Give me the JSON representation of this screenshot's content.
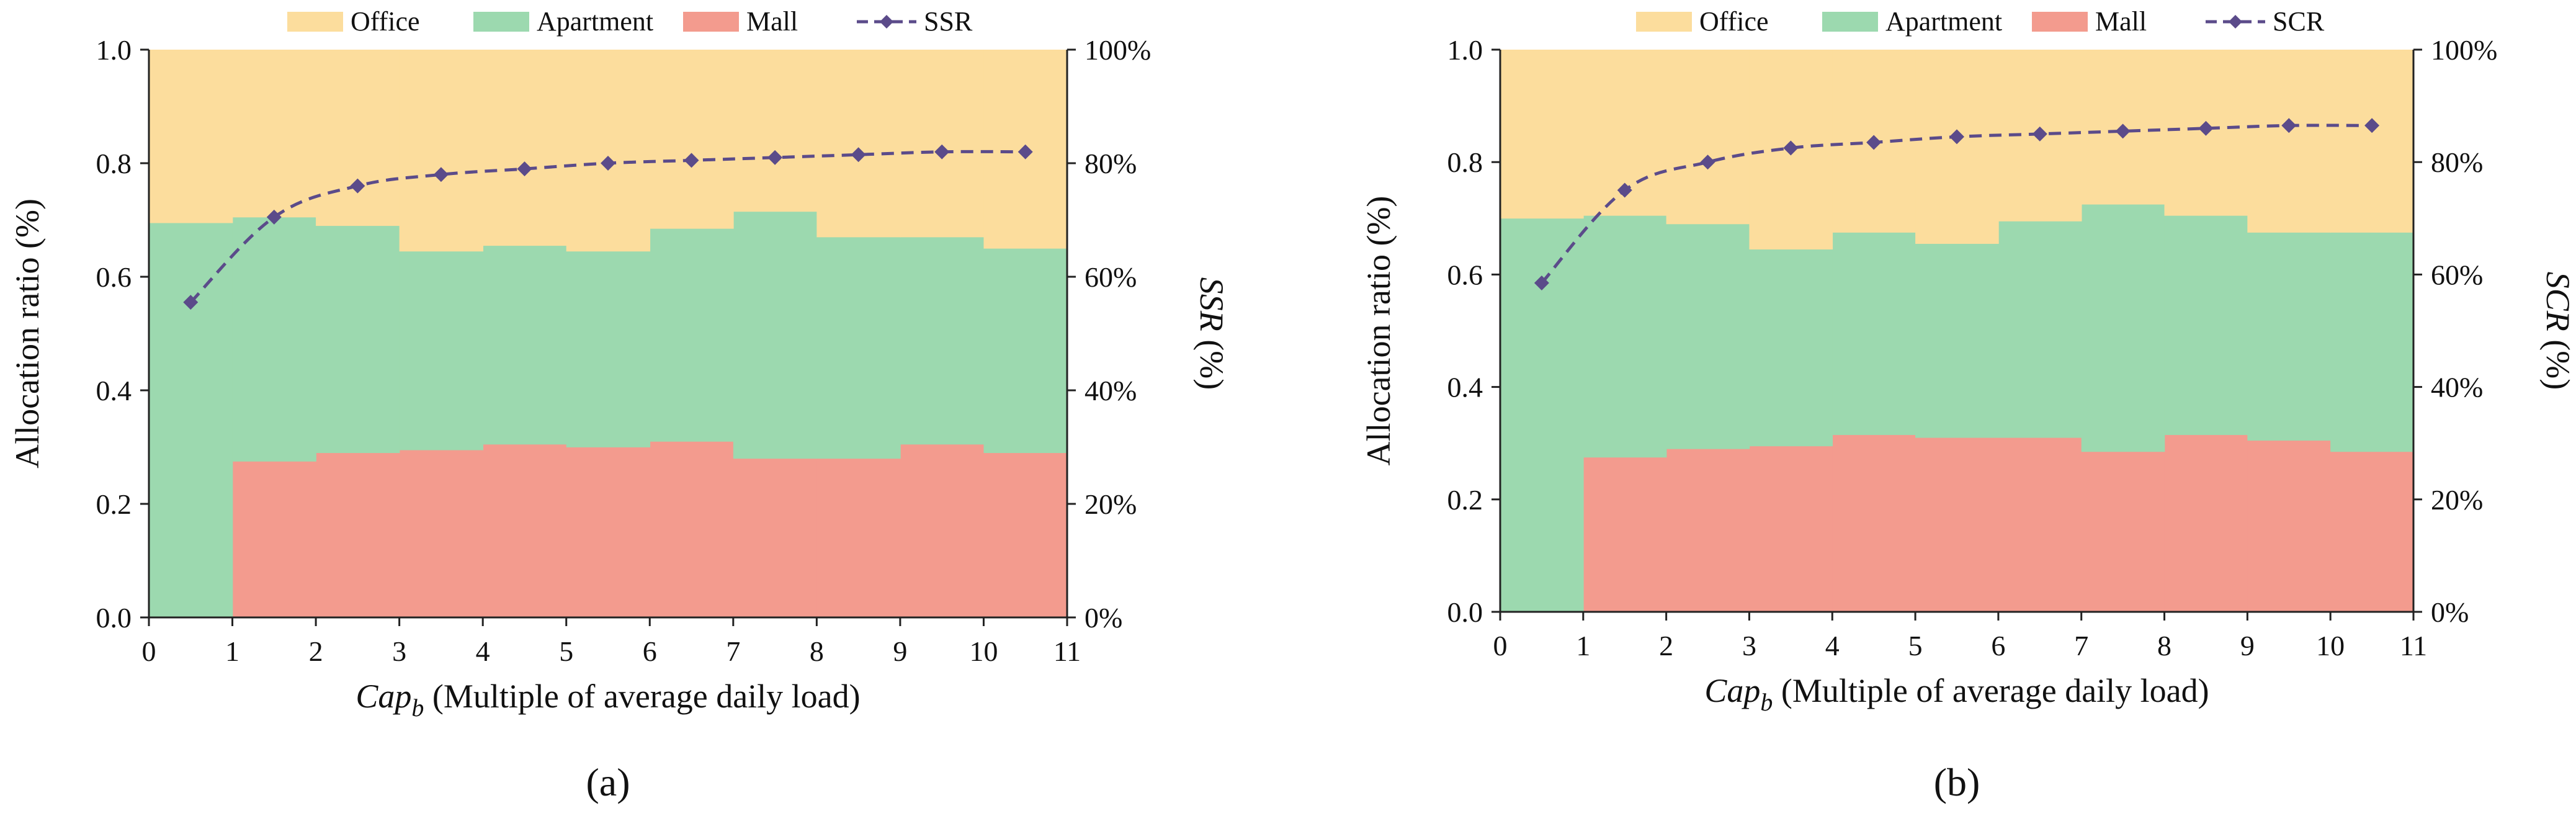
{
  "colors": {
    "office": "#FCDD9D",
    "apartment": "#9CD9AF",
    "mall": "#F39B8E",
    "line": "#5B4B8A",
    "axis": "#222222"
  },
  "chart_data": [
    {
      "type": "area",
      "panel_label": "(a)",
      "legend": [
        "Office",
        "Apartment",
        "Mall",
        "SSR"
      ],
      "x_segments": [
        [
          0,
          1
        ],
        [
          1,
          2
        ],
        [
          2,
          3
        ],
        [
          3,
          4
        ],
        [
          4,
          5
        ],
        [
          5,
          6
        ],
        [
          6,
          7
        ],
        [
          7,
          8
        ],
        [
          8,
          9
        ],
        [
          9,
          10
        ],
        [
          10,
          11
        ]
      ],
      "series": [
        {
          "name": "Mall",
          "kind": "stacked-area",
          "values": [
            0.0,
            0.275,
            0.29,
            0.295,
            0.305,
            0.3,
            0.31,
            0.28,
            0.28,
            0.305,
            0.29
          ]
        },
        {
          "name": "Apartment",
          "kind": "stacked-area",
          "values": [
            0.695,
            0.43,
            0.4,
            0.35,
            0.35,
            0.345,
            0.375,
            0.435,
            0.39,
            0.365,
            0.36
          ]
        },
        {
          "name": "Office",
          "kind": "stacked-area",
          "values": [
            0.305,
            0.295,
            0.31,
            0.355,
            0.345,
            0.355,
            0.315,
            0.285,
            0.33,
            0.33,
            0.35
          ]
        },
        {
          "name": "SSR",
          "kind": "line",
          "axis": "right",
          "x": [
            0.5,
            1.5,
            2.5,
            3.5,
            4.5,
            5.5,
            6.5,
            7.5,
            8.5,
            9.5,
            10.5
          ],
          "values": [
            55.5,
            70.5,
            76,
            78,
            79,
            80,
            80.5,
            81,
            81.5,
            82,
            82
          ]
        }
      ],
      "xlabel_italic": "Cap",
      "xlabel_sub": "b",
      "xlabel_rest": " (Multiple of average daily load)",
      "ylabel": "Allocation ratio (%)",
      "ylabel_right_italic": "SSR",
      "ylabel_right_rest": " (%)",
      "xlim": [
        0,
        11
      ],
      "ylim": [
        0,
        1
      ],
      "ylim_right": [
        0,
        100
      ],
      "x_ticks": [
        "0",
        "1",
        "2",
        "3",
        "4",
        "5",
        "6",
        "7",
        "8",
        "9",
        "10",
        "11"
      ],
      "y_ticks": [
        "0.0",
        "0.2",
        "0.4",
        "0.6",
        "0.8",
        "1.0"
      ],
      "y_ticks_right": [
        "0%",
        "20%",
        "40%",
        "60%",
        "80%",
        "100%"
      ],
      "legend_position": "top",
      "grid": false
    },
    {
      "type": "area",
      "panel_label": "(b)",
      "legend": [
        "Office",
        "Apartment",
        "Mall",
        "SCR"
      ],
      "x_segments": [
        [
          0,
          1
        ],
        [
          1,
          2
        ],
        [
          2,
          3
        ],
        [
          3,
          4
        ],
        [
          4,
          5
        ],
        [
          5,
          6
        ],
        [
          6,
          7
        ],
        [
          7,
          8
        ],
        [
          8,
          9
        ],
        [
          9,
          10
        ],
        [
          10,
          11
        ]
      ],
      "series": [
        {
          "name": "Mall",
          "kind": "stacked-area",
          "values": [
            0.0,
            0.275,
            0.29,
            0.295,
            0.315,
            0.31,
            0.31,
            0.285,
            0.315,
            0.305,
            0.285
          ]
        },
        {
          "name": "Apartment",
          "kind": "stacked-area",
          "values": [
            0.7,
            0.43,
            0.4,
            0.35,
            0.36,
            0.345,
            0.385,
            0.44,
            0.39,
            0.37,
            0.39
          ]
        },
        {
          "name": "Office",
          "kind": "stacked-area",
          "values": [
            0.3,
            0.295,
            0.31,
            0.355,
            0.325,
            0.345,
            0.305,
            0.275,
            0.295,
            0.325,
            0.325
          ]
        },
        {
          "name": "SCR",
          "kind": "line",
          "axis": "right",
          "x": [
            0.5,
            1.5,
            2.5,
            3.5,
            4.5,
            5.5,
            6.5,
            7.5,
            8.5,
            9.5,
            10.5
          ],
          "values": [
            58.5,
            75,
            80,
            82.5,
            83.5,
            84.5,
            85,
            85.5,
            86,
            86.5,
            86.5
          ]
        }
      ],
      "xlabel_italic": "Cap",
      "xlabel_sub": "b",
      "xlabel_rest": " (Multiple of average daily load)",
      "ylabel": "Allocation ratio (%)",
      "ylabel_right_italic": "SCR",
      "ylabel_right_rest": " (%)",
      "xlim": [
        0,
        11
      ],
      "ylim": [
        0,
        1
      ],
      "ylim_right": [
        0,
        100
      ],
      "x_ticks": [
        "0",
        "1",
        "2",
        "3",
        "4",
        "5",
        "6",
        "7",
        "8",
        "9",
        "10",
        "11"
      ],
      "y_ticks": [
        "0.0",
        "0.2",
        "0.4",
        "0.6",
        "0.8",
        "1.0"
      ],
      "y_ticks_right": [
        "0%",
        "20%",
        "40%",
        "60%",
        "80%",
        "100%"
      ],
      "legend_position": "top",
      "grid": false
    }
  ]
}
